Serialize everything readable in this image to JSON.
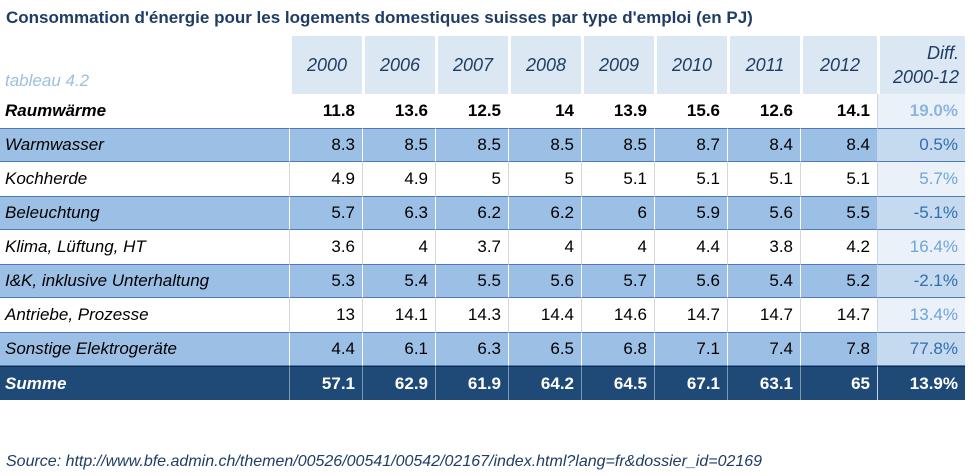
{
  "title": "Consommation d'énergie pour les logements domestiques suisses par type d'emploi (en PJ)",
  "table_label": "tableau 4.2",
  "columns": [
    "2000",
    "2006",
    "2007",
    "2008",
    "2009",
    "2010",
    "2011",
    "2012"
  ],
  "diff_header": {
    "line1": "Diff.",
    "line2": "2000-12"
  },
  "rows": [
    {
      "label": "Raumwärme",
      "values": [
        "11.8",
        "13.6",
        "12.5",
        "14",
        "13.9",
        "15.6",
        "12.6",
        "14.1"
      ],
      "diff": "19.0%"
    },
    {
      "label": "Warmwasser",
      "values": [
        "8.3",
        "8.5",
        "8.5",
        "8.5",
        "8.5",
        "8.7",
        "8.4",
        "8.4"
      ],
      "diff": "0.5%"
    },
    {
      "label": "Kochherde",
      "values": [
        "4.9",
        "4.9",
        "5",
        "5",
        "5.1",
        "5.1",
        "5.1",
        "5.1"
      ],
      "diff": "5.7%"
    },
    {
      "label": "Beleuchtung",
      "values": [
        "5.7",
        "6.3",
        "6.2",
        "6.2",
        "6",
        "5.9",
        "5.6",
        "5.5"
      ],
      "diff": "-5.1%"
    },
    {
      "label": "Klima, Lüftung, HT",
      "values": [
        "3.6",
        "4",
        "3.7",
        "4",
        "4",
        "4.4",
        "3.8",
        "4.2"
      ],
      "diff": "16.4%"
    },
    {
      "label": "I&K, inklusive Unterhaltung",
      "values": [
        "5.3",
        "5.4",
        "5.5",
        "5.6",
        "5.7",
        "5.6",
        "5.4",
        "5.2"
      ],
      "diff": "-2.1%"
    },
    {
      "label": "Antriebe, Prozesse",
      "values": [
        "13",
        "14.1",
        "14.3",
        "14.4",
        "14.6",
        "14.7",
        "14.7",
        "14.7"
      ],
      "diff": "13.4%"
    },
    {
      "label": "Sonstige Elektrogeräte",
      "values": [
        "4.4",
        "6.1",
        "6.3",
        "6.5",
        "6.8",
        "7.1",
        "7.4",
        "7.8"
      ],
      "diff": "77.8%"
    },
    {
      "label": "Summe",
      "values": [
        "57.1",
        "62.9",
        "61.9",
        "64.2",
        "64.5",
        "67.1",
        "63.1",
        "65"
      ],
      "diff": "13.9%"
    }
  ],
  "source": "Source:  http://www.bfe.admin.ch/themen/00526/00541/00542/02167/index.html?lang=fr&dossier_id=02169"
}
